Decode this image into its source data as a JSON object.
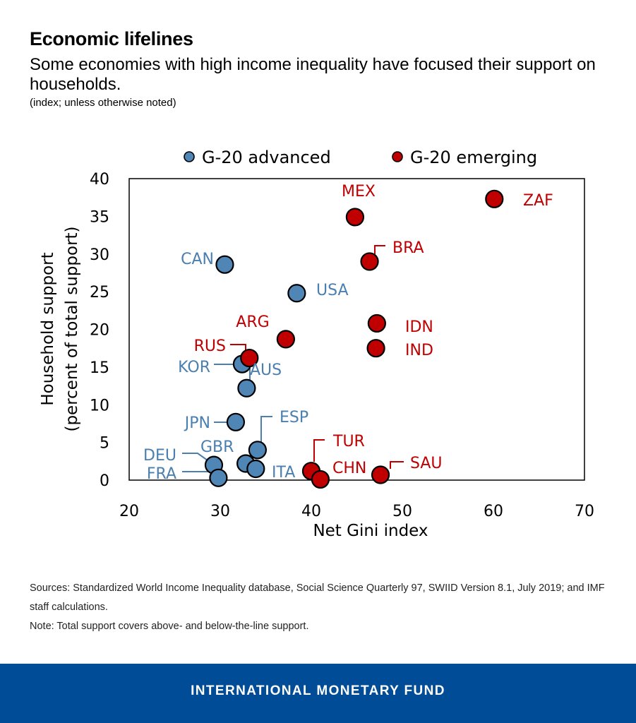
{
  "title": "Economic lifelines",
  "subtitle": "Some economies with high income inequality have focused their support on households.",
  "units_note": "(index; unless otherwise noted)",
  "colors": {
    "advanced": "#4F86B5",
    "emerging": "#C00000",
    "footer_bg": "#004C97"
  },
  "chart_data": {
    "type": "scatter",
    "xlabel": "Net Gini index",
    "ylabel_line1": "Household support",
    "ylabel_line2": "(percent of total support)",
    "xlim": [
      20,
      70
    ],
    "ylim": [
      0,
      40
    ],
    "xticks": [
      20,
      30,
      40,
      50,
      60,
      70
    ],
    "yticks": [
      0,
      5,
      10,
      15,
      20,
      25,
      30,
      35,
      40
    ],
    "legend": [
      {
        "name": "G-20 advanced",
        "group": "advanced"
      },
      {
        "name": "G-20 emerging",
        "group": "emerging"
      }
    ],
    "points": [
      {
        "label": "CAN",
        "group": "advanced",
        "x": 30.5,
        "y": 28.6
      },
      {
        "label": "USA",
        "group": "advanced",
        "x": 38.4,
        "y": 24.8
      },
      {
        "label": "KOR",
        "group": "advanced",
        "x": 32.4,
        "y": 15.4
      },
      {
        "label": "AUS",
        "group": "advanced",
        "x": 32.9,
        "y": 12.2
      },
      {
        "label": "JPN",
        "group": "advanced",
        "x": 31.7,
        "y": 7.7
      },
      {
        "label": "ESP",
        "group": "advanced",
        "x": 34.1,
        "y": 4.0
      },
      {
        "label": "GBR",
        "group": "advanced",
        "x": 32.8,
        "y": 2.2
      },
      {
        "label": "ITA",
        "group": "advanced",
        "x": 33.9,
        "y": 1.5
      },
      {
        "label": "DEU",
        "group": "advanced",
        "x": 29.3,
        "y": 2.0
      },
      {
        "label": "FRA",
        "group": "advanced",
        "x": 29.8,
        "y": 0.3
      },
      {
        "label": "ZAF",
        "group": "emerging",
        "x": 60.1,
        "y": 37.3
      },
      {
        "label": "MEX",
        "group": "emerging",
        "x": 44.8,
        "y": 34.9
      },
      {
        "label": "BRA",
        "group": "emerging",
        "x": 46.4,
        "y": 29.0
      },
      {
        "label": "IDN",
        "group": "emerging",
        "x": 47.2,
        "y": 20.8
      },
      {
        "label": "IND",
        "group": "emerging",
        "x": 47.1,
        "y": 17.5
      },
      {
        "label": "ARG",
        "group": "emerging",
        "x": 37.2,
        "y": 18.7
      },
      {
        "label": "RUS",
        "group": "emerging",
        "x": 33.2,
        "y": 16.2
      },
      {
        "label": "TUR",
        "group": "emerging",
        "x": 40.0,
        "y": 1.2
      },
      {
        "label": "CHN",
        "group": "emerging",
        "x": 41.0,
        "y": 0.1
      },
      {
        "label": "SAU",
        "group": "emerging",
        "x": 47.6,
        "y": 0.7
      }
    ]
  },
  "sources_text": "Sources:  Standardized World Income Inequality database, Social Science Quarterly 97, SWIID Version 8.1, July 2019; and IMF staff calculations.",
  "note_text": "Note: Total support covers above- and below-the-line support.",
  "footer_text": "INTERNATIONAL MONETARY FUND"
}
